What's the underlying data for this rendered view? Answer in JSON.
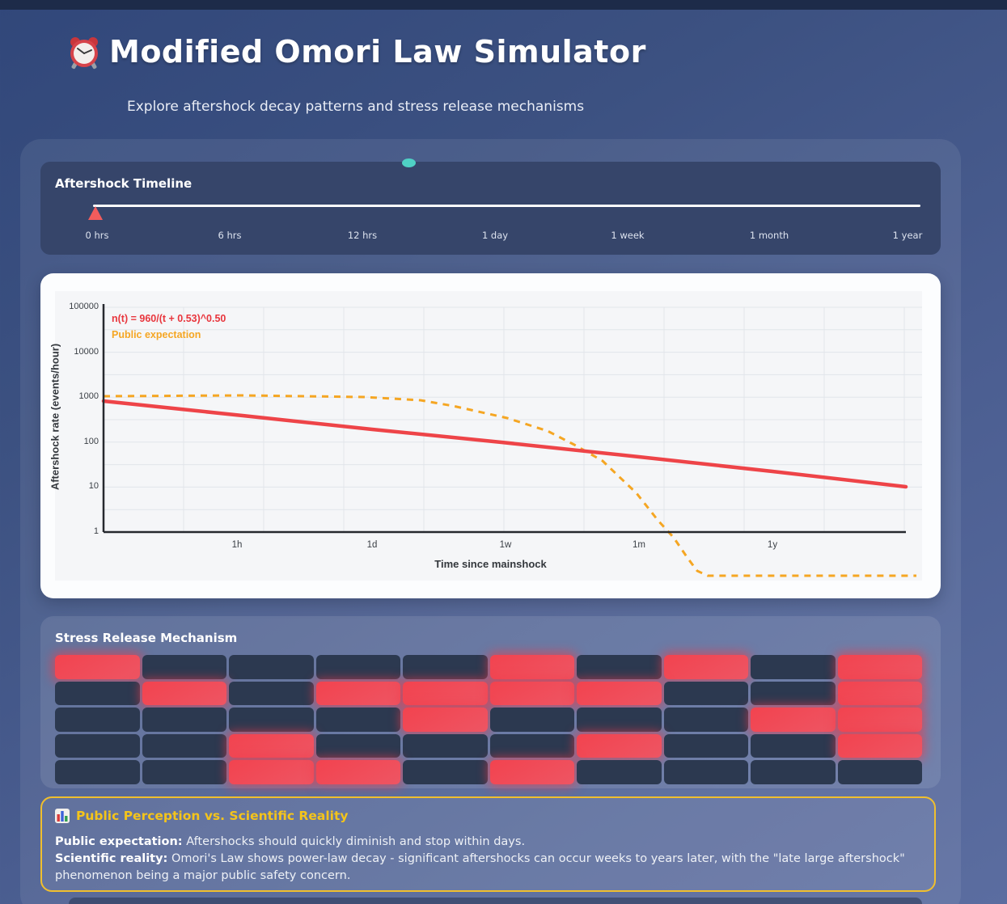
{
  "header": {
    "title": "Modified Omori Law Simulator",
    "subtitle": "Explore aftershock decay patterns and stress release mechanisms"
  },
  "timeline": {
    "title": "Aftershock Timeline",
    "labels": [
      "0 hrs",
      "6 hrs",
      "12 hrs",
      "1 day",
      "1 week",
      "1 month",
      "1 year"
    ],
    "marker_position_label": "0 hrs"
  },
  "chart_data": {
    "type": "line",
    "xlabel": "Time since mainshock",
    "ylabel": "Aftershock rate (events/hour)",
    "x_tick_labels": [
      "1h",
      "1d",
      "1w",
      "1m",
      "1y"
    ],
    "y_tick_labels": [
      "100000",
      "10000",
      "1000",
      "100",
      "10",
      "1"
    ],
    "y_scale": "log",
    "ylim": [
      1,
      100000
    ],
    "grid": "on",
    "legend_position": "top-left",
    "series": [
      {
        "name": "n(t) = 960/(t + 0.53)^0.50",
        "color": "#e8363d",
        "style": "solid",
        "x": [
          "1h",
          "1d",
          "1w",
          "1m",
          "1y"
        ],
        "values": [
          776,
          194,
          74,
          36,
          10
        ]
      },
      {
        "name": "Public expectation",
        "color": "#f5a623",
        "style": "dashed",
        "x": [
          "1h",
          "1d",
          "1w",
          "1m",
          "1y"
        ],
        "values": [
          1000,
          950,
          600,
          25,
          0
        ]
      }
    ]
  },
  "stress": {
    "title": "Stress Release Mechanism",
    "legend": {
      "stressed": "red",
      "relaxed": "dark"
    },
    "grid": [
      "RDDDDRDRDR",
      "DRDRRRRDDR",
      "DDDDRDDDRR",
      "DDRDDDRDDR",
      "DDRRDRDDDD"
    ]
  },
  "info": {
    "title": "Public Perception vs. Scientific Reality",
    "lines": [
      {
        "label": "Public expectation:",
        "text": " Aftershocks should quickly diminish and stop within days."
      },
      {
        "label": "Scientific reality:",
        "text": " Omori's Law shows power-law decay - significant aftershocks can occur weeks to years later, with the \"late large aftershock\" phenomenon being a major public safety concern."
      }
    ]
  },
  "colors": {
    "accent_red": "#f2434f",
    "accent_orange": "#f5a623",
    "accent_gold": "#f0bf2e",
    "accent_teal": "#4fd1c5",
    "panel_dark": "#36456a",
    "cell_dark": "#2c3950"
  }
}
